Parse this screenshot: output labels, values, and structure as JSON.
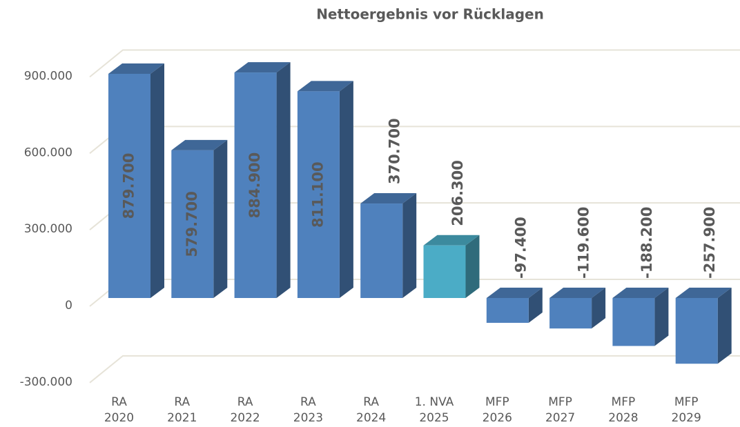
{
  "chart_data": {
    "type": "bar3d",
    "title": "Nettoergebnis vor Rücklagen",
    "categories": [
      "RA 2020",
      "RA 2021",
      "RA 2022",
      "RA 2023",
      "RA 2024",
      "1. NVA 2025",
      "MFP 2026",
      "MFP 2027",
      "MFP 2028",
      "MFP 2029"
    ],
    "values": [
      879700,
      579700,
      884900,
      811100,
      370700,
      206300,
      -97400,
      -119600,
      -188200,
      -257900
    ],
    "value_labels": [
      "879.700",
      "579.700",
      "884.900",
      "811.100",
      "370.700",
      "206.300",
      "-97.400",
      "-119.600",
      "-188.200",
      "-257.900"
    ],
    "colors": [
      "#4f81bd",
      "#4f81bd",
      "#4f81bd",
      "#4f81bd",
      "#4f81bd",
      "#4bacc6",
      "#4f81bd",
      "#4f81bd",
      "#4f81bd",
      "#4f81bd"
    ],
    "ylim": [
      -300000,
      900000
    ],
    "yticks": [
      {
        "value": -300000,
        "label": "-300.000"
      },
      0,
      {
        "value": 300000,
        "label": "300.000"
      },
      {
        "value": 600000,
        "label": "600.000"
      },
      {
        "value": 900000,
        "label": "900.000"
      }
    ],
    "grid": true
  }
}
